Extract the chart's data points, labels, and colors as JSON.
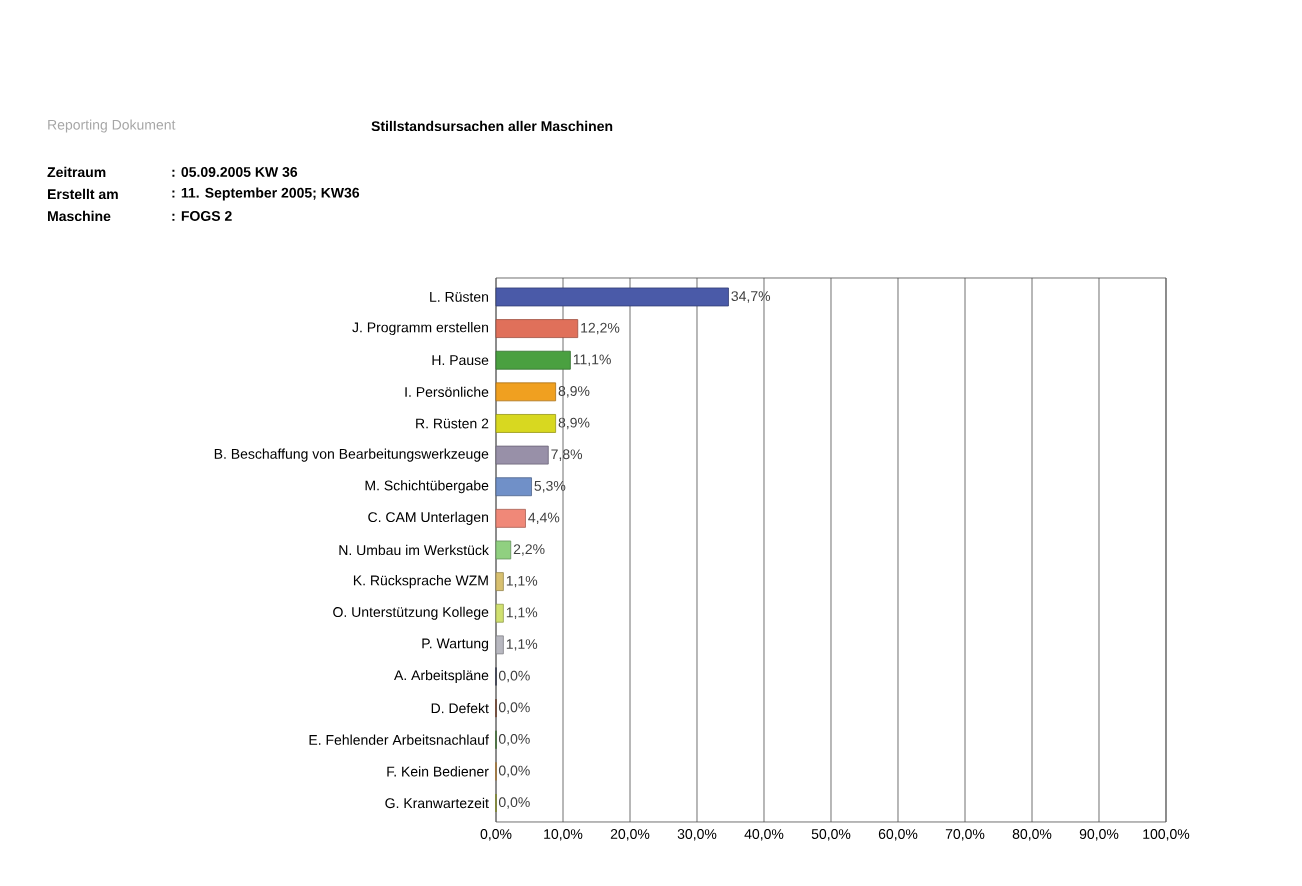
{
  "chart_data": {
    "type": "bar",
    "orientation": "horizontal",
    "title": "Stillstandsursachen aller Maschinen",
    "annotations": [
      "Reporting Dokument",
      "Zeitraum",
      ": 05.09.2005 KW 36",
      "Erstellt am",
      ": 11. September 2005; KW36",
      "Maschine",
      ": FOGS 2"
    ],
    "categories": [
      "L. Rüsten",
      "J. Programm erstellen",
      "H. Pause",
      "I. Persönliche",
      "R. Rüsten 2",
      "B. Beschaffung von Bearbeitungswerkzeuge",
      "M. Schichtübergabe",
      "C. CAM Unterlagen",
      "N. Umbau im Werkstück",
      "K. Rücksprache WZM",
      "O. Unterstützung Kollege",
      "P. Wartung",
      "A. Arbeitspläne",
      "D. Defekt",
      "E. Fehlender Arbeitsnachlauf",
      "F. Kein Bediener",
      "G. Kranwartezeit"
    ],
    "values": [
      34.7,
      12.2,
      11.1,
      8.9,
      8.9,
      7.8,
      5.3,
      4.4,
      2.2,
      1.1,
      1.1,
      1.1,
      0,
      0,
      0,
      0,
      0
    ],
    "value_labels": [
      "34,7%",
      "12,2%",
      "11,1%",
      "8,9%",
      "8,9%",
      "7,8%",
      "5,3%",
      "4,4%",
      "2,2%",
      "1,1%",
      "1,1%",
      "1,1%",
      "0,0%",
      "0,0%",
      "0,0%",
      "0,0%",
      "0,0%"
    ],
    "colors": [
      "#4a5aa8",
      "#e0705a",
      "#4aa040",
      "#f0a020",
      "#d8d820",
      "#9890a8",
      "#7090c8",
      "#f08878",
      "#90d080",
      "#d8c070",
      "#d0e070",
      "#b8b8c0",
      "#303858",
      "#904020",
      "#409030",
      "#f0a030",
      "#b0c020"
    ],
    "xlim": [
      0,
      100
    ],
    "xticks": [
      {
        "value": 0,
        "label": "0,0%"
      },
      {
        "value": 10,
        "label": "10,0%"
      },
      {
        "value": 20,
        "label": "20,0%"
      },
      {
        "value": 30,
        "label": "30,0%"
      },
      {
        "value": 40,
        "label": "40,0%"
      },
      {
        "value": 50,
        "label": "50,0%"
      },
      {
        "value": 60,
        "label": "60,0%"
      },
      {
        "value": 70,
        "label": "70,0%"
      },
      {
        "value": 80,
        "label": "80,0%"
      },
      {
        "value": 90,
        "label": "90,0%"
      },
      {
        "value": 100,
        "label": "100,0%"
      }
    ],
    "grid": "x"
  }
}
